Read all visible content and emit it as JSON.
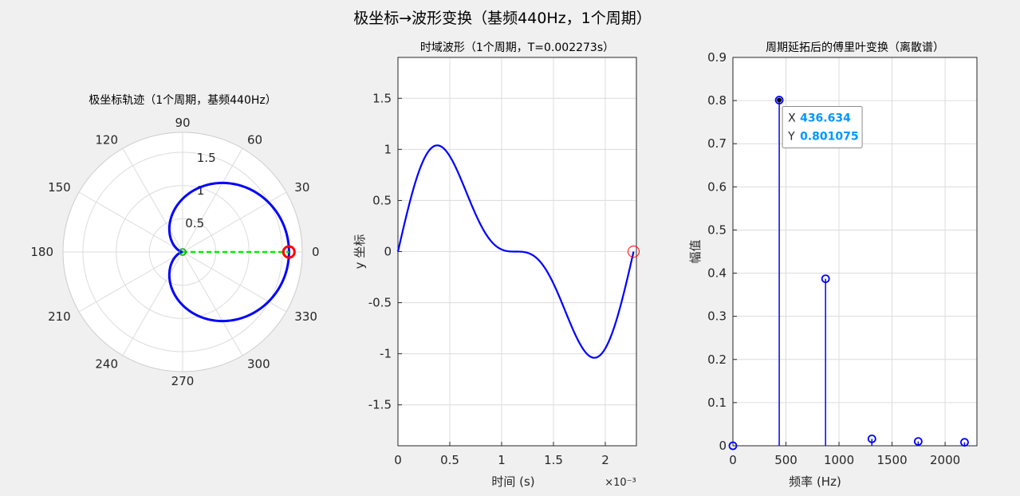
{
  "figure": {
    "suptitle": "极坐标→波形变换（基频440Hz，1个周期）"
  },
  "chart_data": [
    {
      "type": "polar",
      "title": "极坐标轨迹（1个周期，基频440Hz）",
      "r_ticks": [
        0.5,
        1,
        1.5
      ],
      "r_tick_labels": [
        "0.5",
        "1",
        "1.5"
      ],
      "r_max": 1.8,
      "theta_ticks_deg": [
        0,
        30,
        60,
        90,
        120,
        150,
        180,
        210,
        240,
        270,
        300,
        330
      ],
      "theta_tick_labels": [
        "0",
        "30",
        "60",
        "90",
        "120",
        "150",
        "180",
        "210",
        "240",
        "270",
        "300",
        "330"
      ],
      "grid": true,
      "series": [
        {
          "kind": "cardioid",
          "a": 0.8,
          "b": 0.8,
          "color": "#0000ff"
        },
        {
          "kind": "radius_line",
          "theta_deg": 0,
          "r_from": 0,
          "r_to": 1.6,
          "color": "#00ee00",
          "style": "dashed"
        }
      ],
      "markers": [
        {
          "theta_deg": 0,
          "r": 1.6,
          "color": "#ff0000",
          "shape": "circle"
        },
        {
          "theta_deg": 0,
          "r": 0,
          "color": "#00aa00",
          "shape": "circle"
        }
      ]
    },
    {
      "type": "line",
      "title": "时域波形（1个周期，T=0.002273s）",
      "xlabel": "时间 (s)",
      "ylabel": "y 坐标",
      "xlim": [
        0,
        2.3
      ],
      "ylim": [
        -1.9,
        1.9
      ],
      "x_ticks": [
        0,
        0.5,
        1,
        1.5,
        2
      ],
      "x_tick_labels": [
        "0",
        "0.5",
        "1",
        "1.5",
        "2"
      ],
      "x_exponent_label": "×10⁻³",
      "y_ticks": [
        -1.5,
        -1,
        -0.5,
        0,
        0.5,
        1,
        1.5
      ],
      "y_tick_labels": [
        "-1.5",
        "-1",
        "-0.5",
        "0",
        "0.5",
        "1",
        "1.5"
      ],
      "grid": true,
      "series": [
        {
          "kind": "function",
          "period": 2.273,
          "a": 0.8,
          "b": 0.8,
          "color": "#0000ff"
        }
      ],
      "markers": [
        {
          "x": 2.273,
          "y": 0,
          "color": "#ff0000",
          "shape": "circle"
        }
      ]
    },
    {
      "type": "stem",
      "title": "周期延拓后的傅里叶变换（离散谱）",
      "xlabel": "频率 (Hz)",
      "ylabel": "幅值",
      "xlim": [
        0,
        2300
      ],
      "ylim": [
        0,
        0.9
      ],
      "x_ticks": [
        0,
        500,
        1000,
        1500,
        2000
      ],
      "x_tick_labels": [
        "0",
        "500",
        "1000",
        "1500",
        "2000"
      ],
      "y_ticks": [
        0,
        0.1,
        0.2,
        0.3,
        0.4,
        0.5,
        0.6,
        0.7,
        0.8,
        0.9
      ],
      "y_tick_labels": [
        "0",
        "0.1",
        "0.2",
        "0.3",
        "0.4",
        "0.5",
        "0.6",
        "0.7",
        "0.8",
        "0.9"
      ],
      "grid": true,
      "x": [
        0,
        436.634,
        873.3,
        1310,
        1746.5,
        2183.2
      ],
      "values": [
        0,
        0.801075,
        0.387,
        0.016,
        0.01,
        0.008
      ],
      "color": "#0000ff",
      "datatip": {
        "x_label": "X",
        "x_value": "436.634",
        "y_label": "Y",
        "y_value": "0.801075",
        "point_index": 1
      }
    }
  ]
}
